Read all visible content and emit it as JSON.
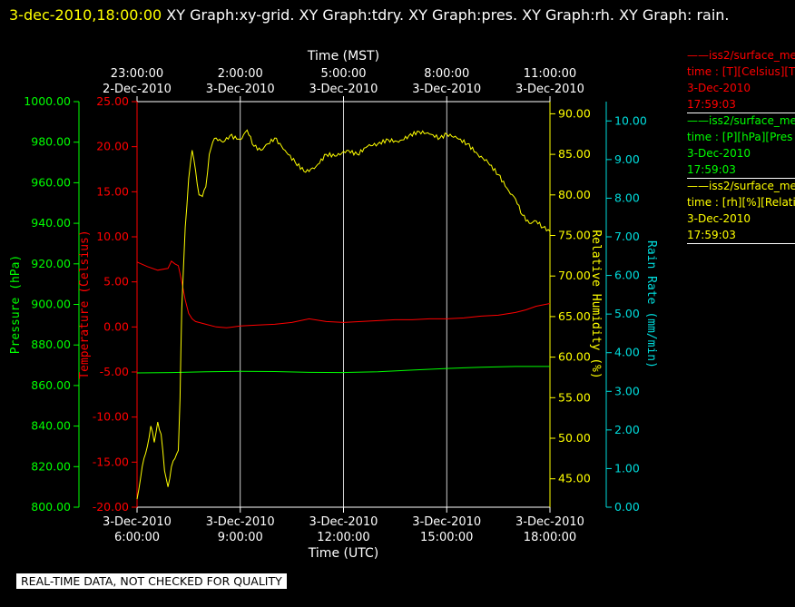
{
  "header": {
    "timestamp": "3-dec-2010,18:00:00",
    "title_text": "  XY Graph:xy-grid.  XY Graph:tdry.  XY Graph:pres.  XY Graph:rh.  XY Graph: rain."
  },
  "footer": {
    "qc_notice": "REAL-TIME DATA, NOT CHECKED FOR QUALITY"
  },
  "legend": [
    {
      "name": "iss2/surface_me",
      "line2": "time : [T][Celsius][T",
      "line3": "3-Dec-2010",
      "line4": "17:59:03",
      "color": "#ff0000"
    },
    {
      "name": "iss2/surface_me",
      "line2": "time : [P][hPa][Pres",
      "line3": "3-Dec-2010",
      "line4": "17:59:03",
      "color": "#00ff00"
    },
    {
      "name": "iss2/surface_me",
      "line2": "time : [rh][%][Relati",
      "line3": "3-Dec-2010",
      "line4": "17:59:03",
      "color": "#ffff00"
    }
  ],
  "chart_data": {
    "type": "line",
    "x_bottom": {
      "label": "Time (UTC)",
      "ticks": [
        {
          "date": "3-Dec-2010",
          "time": "6:00:00"
        },
        {
          "date": "3-Dec-2010",
          "time": "9:00:00"
        },
        {
          "date": "3-Dec-2010",
          "time": "12:00:00"
        },
        {
          "date": "3-Dec-2010",
          "time": "15:00:00"
        },
        {
          "date": "3-Dec-2010",
          "time": "18:00:00"
        }
      ],
      "range_utc_hours": [
        6,
        18
      ]
    },
    "x_top": {
      "label": "Time (MST)",
      "ticks": [
        {
          "date": "2-Dec-2010",
          "time": "23:00:00"
        },
        {
          "date": "3-Dec-2010",
          "time": "2:00:00"
        },
        {
          "date": "3-Dec-2010",
          "time": "5:00:00"
        },
        {
          "date": "3-Dec-2010",
          "time": "8:00:00"
        },
        {
          "date": "3-Dec-2010",
          "time": "11:00:00"
        }
      ]
    },
    "axes": {
      "pressure": {
        "label": "Pressure (hPa)",
        "min": 800,
        "max": 1000,
        "ticks": [
          "800.00",
          "820.00",
          "840.00",
          "860.00",
          "880.00",
          "900.00",
          "920.00",
          "940.00",
          "960.00",
          "980.00",
          "1000.00"
        ],
        "color": "#00ff00"
      },
      "temperature": {
        "label": "Temperature (Celsius)",
        "min": -20,
        "max": 25,
        "ticks": [
          "-20.00",
          "-15.00",
          "-10.00",
          "-5.00",
          "0.00",
          "5.00",
          "10.00",
          "15.00",
          "20.00",
          "25.00"
        ],
        "color": "#ff0000"
      },
      "humidity": {
        "label": "Relative Humidity (%)",
        "min": 41.5,
        "max": 91.5,
        "ticks": [
          "45.00",
          "50.00",
          "55.00",
          "60.00",
          "65.00",
          "70.00",
          "75.00",
          "80.00",
          "85.00",
          "90.00"
        ],
        "color": "#ffff00"
      },
      "rain": {
        "label": "Rain Rate (mm/min)",
        "min": 0,
        "max": 10.5,
        "ticks": [
          "0.00",
          "1.00",
          "2.00",
          "3.00",
          "4.00",
          "5.00",
          "6.00",
          "7.00",
          "8.00",
          "9.00",
          "10.00"
        ],
        "color": "#00dddd"
      }
    },
    "grid": true,
    "series": [
      {
        "axis": "temperature",
        "color": "#ff0000",
        "x": [
          6.0,
          6.3,
          6.6,
          6.9,
          7.0,
          7.1,
          7.2,
          7.3,
          7.4,
          7.5,
          7.6,
          7.7,
          7.8,
          8.0,
          8.3,
          8.6,
          9.0,
          9.5,
          10.0,
          10.5,
          11.0,
          11.5,
          12.0,
          12.5,
          13.0,
          13.5,
          14.0,
          14.5,
          15.0,
          15.5,
          16.0,
          16.5,
          17.0,
          17.3,
          17.6,
          18.0
        ],
        "y": [
          7.2,
          6.7,
          6.3,
          6.5,
          7.3,
          7.0,
          6.8,
          5.0,
          3.0,
          1.5,
          0.9,
          0.6,
          0.5,
          0.3,
          0.0,
          -0.1,
          0.1,
          0.2,
          0.3,
          0.5,
          0.9,
          0.6,
          0.5,
          0.6,
          0.7,
          0.8,
          0.8,
          0.9,
          0.9,
          1.0,
          1.2,
          1.3,
          1.6,
          1.9,
          2.3,
          2.6
        ]
      },
      {
        "axis": "pressure",
        "color": "#00ff00",
        "x": [
          6.0,
          7.0,
          8.0,
          9.0,
          10.0,
          11.0,
          12.0,
          13.0,
          14.0,
          15.0,
          16.0,
          17.0,
          18.0
        ],
        "y": [
          866.2,
          866.4,
          866.8,
          867.0,
          866.9,
          866.5,
          866.4,
          866.8,
          867.6,
          868.4,
          869.0,
          869.4,
          869.4
        ]
      },
      {
        "axis": "humidity",
        "color": "#ffff00",
        "x": [
          6.0,
          6.1,
          6.2,
          6.3,
          6.4,
          6.5,
          6.6,
          6.7,
          6.8,
          6.9,
          7.0,
          7.1,
          7.2,
          7.25,
          7.3,
          7.4,
          7.5,
          7.6,
          7.7,
          7.8,
          7.9,
          8.0,
          8.1,
          8.2,
          8.3,
          8.5,
          8.7,
          9.0,
          9.2,
          9.4,
          9.6,
          9.8,
          10.0,
          10.3,
          10.6,
          10.9,
          11.2,
          11.5,
          11.8,
          12.1,
          12.4,
          12.7,
          13.0,
          13.3,
          13.6,
          13.9,
          14.2,
          14.5,
          14.8,
          15.0,
          15.3,
          15.6,
          15.9,
          16.2,
          16.5,
          16.8,
          17.0,
          17.2,
          17.4,
          17.6,
          17.8,
          18.0
        ],
        "y": [
          42.5,
          45.0,
          47.5,
          49.0,
          51.5,
          49.5,
          52.0,
          50.5,
          46.0,
          44.0,
          46.5,
          47.5,
          48.5,
          55.0,
          66.0,
          76.0,
          82.0,
          85.5,
          83.0,
          80.0,
          79.8,
          81.0,
          85.0,
          86.5,
          87.0,
          86.5,
          87.3,
          86.8,
          88.0,
          86.0,
          85.5,
          86.3,
          87.0,
          85.5,
          84.0,
          82.8,
          83.5,
          85.0,
          84.8,
          85.5,
          85.0,
          86.0,
          86.3,
          86.8,
          86.5,
          87.3,
          87.8,
          87.5,
          87.0,
          87.5,
          87.0,
          86.3,
          85.0,
          84.0,
          82.5,
          80.5,
          79.5,
          77.5,
          76.5,
          76.8,
          76.0,
          75.5
        ]
      },
      {
        "axis": "rain",
        "color": "#00dddd",
        "x": [],
        "y": []
      }
    ]
  }
}
